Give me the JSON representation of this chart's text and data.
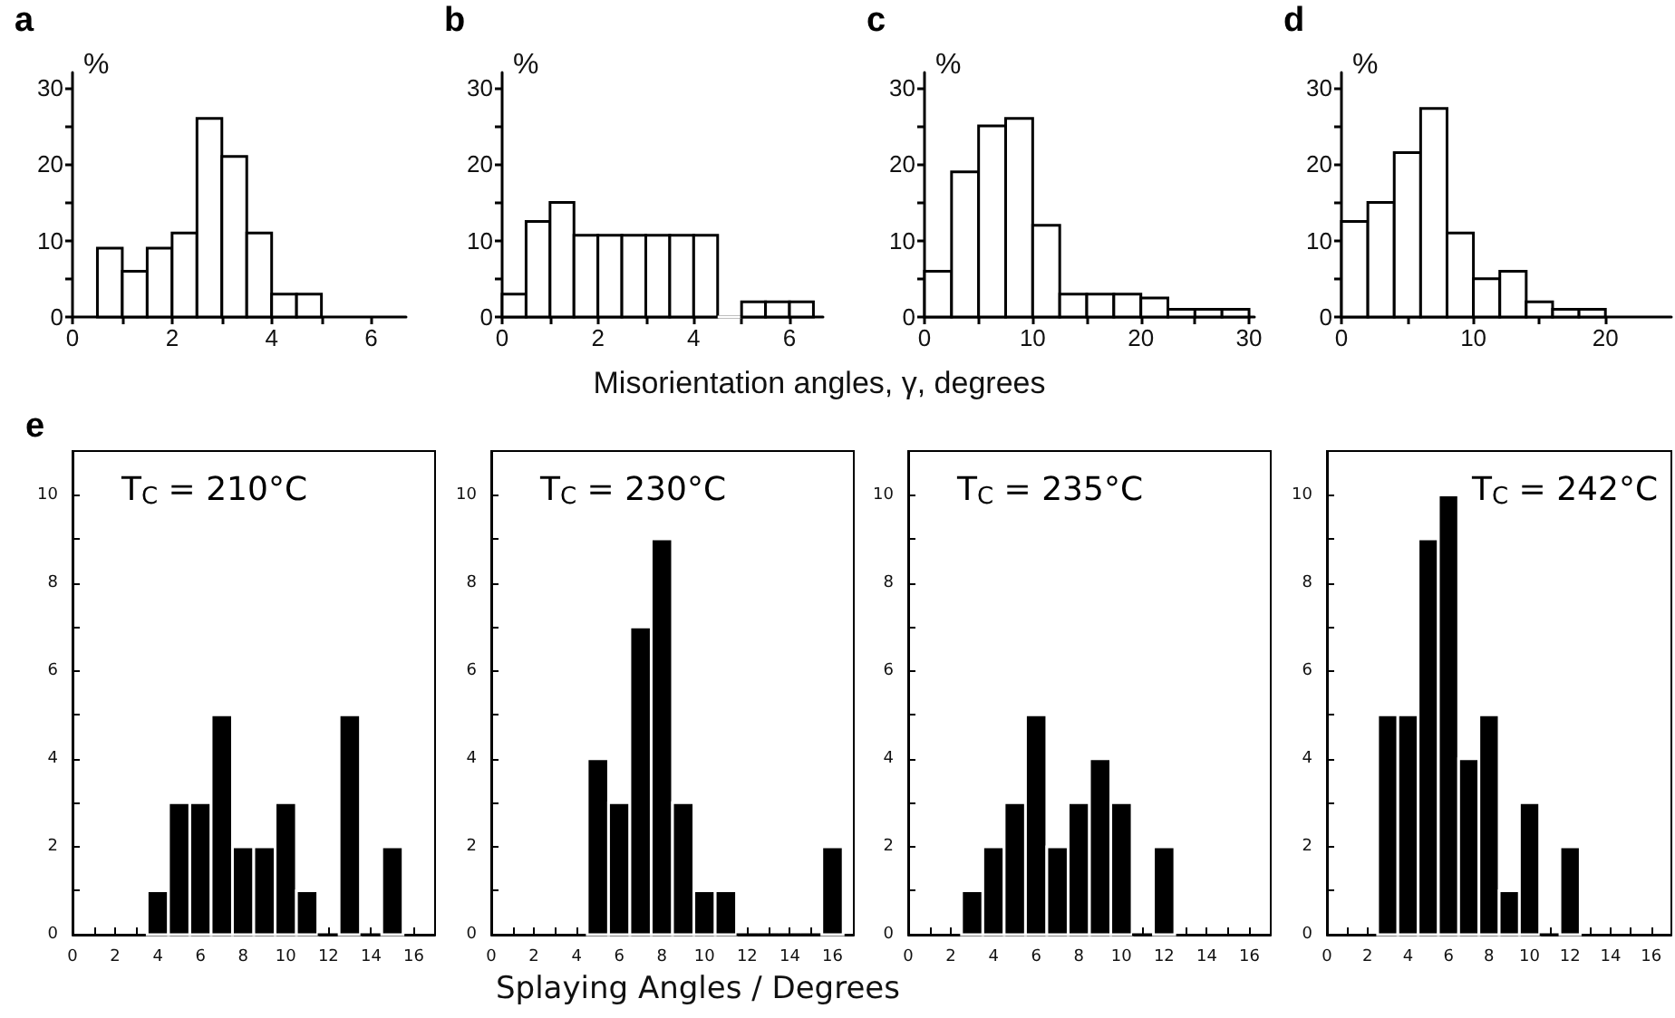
{
  "chart_data": [
    {
      "type": "histogram",
      "annotations": [
        "a"
      ],
      "ylabel": "%",
      "bins": [
        0.5,
        1,
        1.5,
        2,
        2.5,
        3,
        3.5,
        4,
        4.5,
        5
      ],
      "values": [
        9,
        6,
        9,
        11,
        26,
        21,
        11,
        3,
        3
      ],
      "color": "#ffffff",
      "xlim": [
        0,
        6.7
      ],
      "ylim": [
        0,
        32
      ],
      "xticks": [
        0,
        {
          "value": 1,
          "label": null
        },
        2,
        {
          "value": 3,
          "label": null
        },
        4,
        {
          "value": 5,
          "label": null
        },
        6
      ],
      "yticks": [
        0,
        {
          "value": 5,
          "label": null
        },
        10,
        {
          "value": 15,
          "label": null
        },
        20,
        {
          "value": 25,
          "label": null
        },
        30
      ]
    },
    {
      "type": "histogram",
      "annotations": [
        "b"
      ],
      "ylabel": "%",
      "xlabel": "Misorientation angles, γ, degrees",
      "bins": [
        0,
        0.5,
        1,
        1.5,
        2,
        2.5,
        3,
        3.5,
        4,
        4.5,
        5,
        5.5,
        6,
        6.5
      ],
      "values": [
        3,
        12.5,
        15,
        10.7,
        10.7,
        10.7,
        10.7,
        10.7,
        10.7,
        0,
        2,
        2,
        2
      ],
      "color": "#ffffff",
      "xlim": [
        0,
        6.7
      ],
      "ylim": [
        0,
        32
      ],
      "xticks": [
        0,
        {
          "value": 1,
          "label": null
        },
        2,
        {
          "value": 3,
          "label": null
        },
        4,
        {
          "value": 5,
          "label": null
        },
        6
      ],
      "yticks": [
        0,
        {
          "value": 5,
          "label": null
        },
        10,
        {
          "value": 15,
          "label": null
        },
        20,
        {
          "value": 25,
          "label": null
        },
        30
      ]
    },
    {
      "type": "histogram",
      "annotations": [
        "c"
      ],
      "ylabel": "%",
      "bins": [
        0,
        2.5,
        5,
        7.5,
        10,
        12.5,
        15,
        17.5,
        20,
        22.5,
        25,
        27.5,
        30
      ],
      "values": [
        6,
        19,
        25,
        26,
        12,
        3,
        3,
        3,
        2.5,
        1,
        1,
        1
      ],
      "color": "#ffffff",
      "xlim": [
        0,
        30.5
      ],
      "ylim": [
        0,
        32
      ],
      "xticks": [
        0,
        {
          "value": 5,
          "label": null
        },
        10,
        {
          "value": 15,
          "label": null
        },
        20,
        {
          "value": 25,
          "label": null
        },
        30
      ],
      "yticks": [
        0,
        {
          "value": 5,
          "label": null
        },
        10,
        {
          "value": 15,
          "label": null
        },
        20,
        {
          "value": 25,
          "label": null
        },
        30
      ]
    },
    {
      "type": "histogram",
      "annotations": [
        "d"
      ],
      "ylabel": "%",
      "bins": [
        0,
        2,
        4,
        6,
        8,
        10,
        12,
        14,
        16,
        18,
        20
      ],
      "values": [
        12.5,
        15,
        21.5,
        27.3,
        11,
        5,
        6,
        2,
        1,
        1
      ],
      "color": "#ffffff",
      "xlim": [
        0,
        25
      ],
      "ylim": [
        0,
        32
      ],
      "xticks": [
        0,
        {
          "value": 5,
          "label": null
        },
        10,
        {
          "value": 15,
          "label": null
        },
        20
      ],
      "yticks": [
        0,
        {
          "value": 5,
          "label": null
        },
        10,
        {
          "value": 15,
          "label": null
        },
        20,
        {
          "value": 25,
          "label": null
        },
        30
      ]
    },
    {
      "type": "histogram",
      "annotations": [
        "e"
      ],
      "title": "T$_{C}$ = 210°C",
      "bins": [
        3.5,
        4.5,
        5.5,
        6.5,
        7.5,
        8.5,
        9.5,
        10.5,
        11.5,
        12.5,
        13.5,
        14.5,
        15.5
      ],
      "values": [
        1,
        3,
        3,
        5,
        2,
        2,
        3,
        1,
        0,
        5,
        0,
        2
      ],
      "color": "#000000",
      "xlim": [
        0,
        17
      ],
      "ylim": [
        0,
        11
      ],
      "xticks": [
        0,
        {
          "value": 1,
          "label": null
        },
        2,
        {
          "value": 3,
          "label": null
        },
        4,
        {
          "value": 5,
          "label": null
        },
        6,
        {
          "value": 7,
          "label": null
        },
        8,
        {
          "value": 9,
          "label": null
        },
        10,
        {
          "value": 11,
          "label": null
        },
        12,
        {
          "value": 13,
          "label": null
        },
        14,
        {
          "value": 15,
          "label": null
        },
        16
      ],
      "yticks": [
        0,
        {
          "value": 1,
          "label": null
        },
        2,
        {
          "value": 3,
          "label": null
        },
        4,
        {
          "value": 5,
          "label": null
        },
        6,
        {
          "value": 7,
          "label": null
        },
        8,
        {
          "value": 9,
          "label": null
        },
        10
      ]
    },
    {
      "type": "histogram",
      "title": "T$_{C}$ = 230°C",
      "xlabel": "Splaying Angles / Degrees",
      "bins": [
        4.5,
        5.5,
        6.5,
        7.5,
        8.5,
        9.5,
        10.5,
        11.5,
        12.5,
        13.5,
        14.5,
        15.5,
        16.5
      ],
      "values": [
        4,
        3,
        7,
        9,
        3,
        1,
        1,
        0,
        0,
        0,
        0,
        2
      ],
      "color": "#000000",
      "xlim": [
        0,
        17
      ],
      "ylim": [
        0,
        11
      ],
      "xticks": [
        0,
        {
          "value": 1,
          "label": null
        },
        2,
        {
          "value": 3,
          "label": null
        },
        4,
        {
          "value": 5,
          "label": null
        },
        6,
        {
          "value": 7,
          "label": null
        },
        8,
        {
          "value": 9,
          "label": null
        },
        10,
        {
          "value": 11,
          "label": null
        },
        12,
        {
          "value": 13,
          "label": null
        },
        14,
        {
          "value": 15,
          "label": null
        },
        16
      ],
      "yticks": [
        0,
        {
          "value": 1,
          "label": null
        },
        2,
        {
          "value": 3,
          "label": null
        },
        4,
        {
          "value": 5,
          "label": null
        },
        6,
        {
          "value": 7,
          "label": null
        },
        8,
        {
          "value": 9,
          "label": null
        },
        10
      ]
    },
    {
      "type": "histogram",
      "title": "T$_{C}$ = 235°C",
      "bins": [
        2.5,
        3.5,
        4.5,
        5.5,
        6.5,
        7.5,
        8.5,
        9.5,
        10.5,
        11.5,
        12.5
      ],
      "values": [
        1,
        2,
        3,
        5,
        2,
        3,
        4,
        3,
        0,
        2
      ],
      "color": "#000000",
      "xlim": [
        0,
        17
      ],
      "ylim": [
        0,
        11
      ],
      "xticks": [
        0,
        {
          "value": 1,
          "label": null
        },
        2,
        {
          "value": 3,
          "label": null
        },
        4,
        {
          "value": 5,
          "label": null
        },
        6,
        {
          "value": 7,
          "label": null
        },
        8,
        {
          "value": 9,
          "label": null
        },
        10,
        {
          "value": 11,
          "label": null
        },
        12,
        {
          "value": 13,
          "label": null
        },
        14,
        {
          "value": 15,
          "label": null
        },
        16
      ],
      "yticks": [
        0,
        {
          "value": 1,
          "label": null
        },
        2,
        {
          "value": 3,
          "label": null
        },
        4,
        {
          "value": 5,
          "label": null
        },
        6,
        {
          "value": 7,
          "label": null
        },
        8,
        {
          "value": 9,
          "label": null
        },
        10
      ]
    },
    {
      "type": "histogram",
      "title": "T$_{C}$ = 242°C",
      "bins": [
        2.5,
        3.5,
        4.5,
        5.5,
        6.5,
        7.5,
        8.5,
        9.5,
        10.5,
        11.5,
        12.5
      ],
      "values": [
        5,
        5,
        9,
        10,
        4,
        5,
        1,
        3,
        0,
        2
      ],
      "color": "#000000",
      "xlim": [
        0,
        17
      ],
      "ylim": [
        0,
        11
      ],
      "xticks": [
        0,
        {
          "value": 1,
          "label": null
        },
        2,
        {
          "value": 3,
          "label": null
        },
        4,
        {
          "value": 5,
          "label": null
        },
        6,
        {
          "value": 7,
          "label": null
        },
        8,
        {
          "value": 9,
          "label": null
        },
        10,
        {
          "value": 11,
          "label": null
        },
        12,
        {
          "value": 13,
          "label": null
        },
        14,
        {
          "value": 15,
          "label": null
        },
        16
      ],
      "yticks": [
        0,
        {
          "value": 1,
          "label": null
        },
        2,
        {
          "value": 3,
          "label": null
        },
        4,
        {
          "value": 5,
          "label": null
        },
        6,
        {
          "value": 7,
          "label": null
        },
        8,
        {
          "value": 9,
          "label": null
        },
        10
      ]
    }
  ]
}
